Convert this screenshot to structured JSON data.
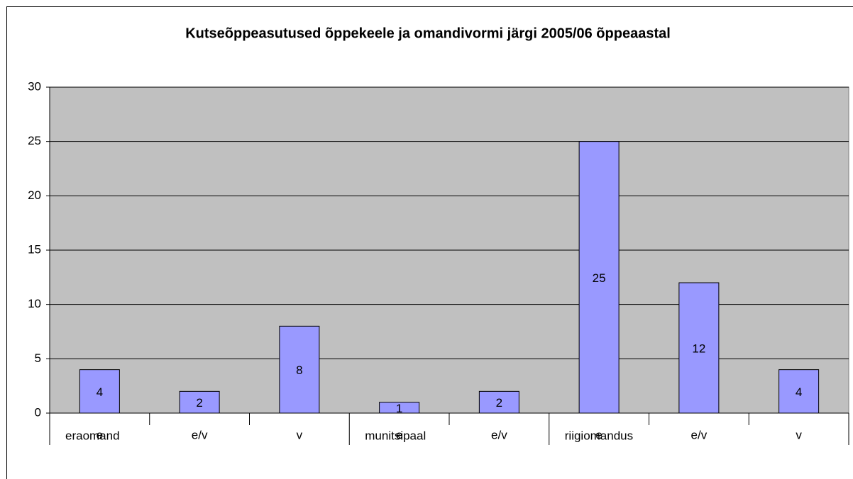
{
  "chart_data": {
    "type": "bar",
    "title": "Kutseõppeasutused õppekeele ja omandivormi järgi 2005/06 õppeaastal",
    "groups": [
      {
        "name": "eraomand",
        "categories": [
          "e",
          "e/v",
          "v"
        ]
      },
      {
        "name": "munitsipaal",
        "categories": [
          "e",
          "e/v"
        ]
      },
      {
        "name": "riigiomandus",
        "categories": [
          "e",
          "e/v",
          "v"
        ]
      }
    ],
    "values": [
      4,
      2,
      8,
      1,
      2,
      25,
      12,
      4
    ],
    "color": "#9999ff",
    "ylim": [
      0,
      30
    ],
    "yticks": [
      0,
      5,
      10,
      15,
      20,
      25,
      30
    ],
    "grid": true
  }
}
